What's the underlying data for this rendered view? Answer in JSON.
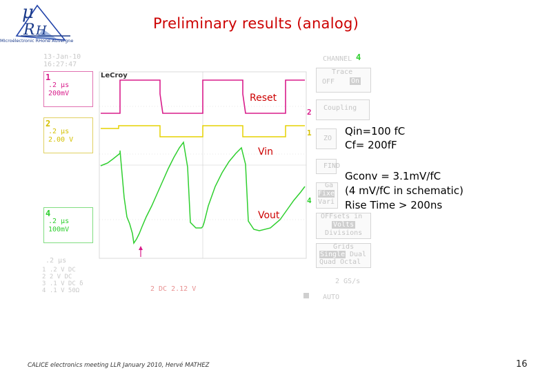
{
  "header": {
    "title": "Preliminary  results (analog)",
    "logo_caption": "MIcroélectronic RHone Auvergne"
  },
  "scope": {
    "date": "13-Jan-10",
    "time": "16:27:47",
    "brand": "LeCroy",
    "channels": [
      {
        "num": "1",
        "line1": ".2 μs",
        "line2": "200mV",
        "color": "#d81b8a"
      },
      {
        "num": "2",
        "line1": ".2 μs",
        "line2": "2.00 V",
        "color": "#e6d200"
      },
      {
        "num": "4",
        "line1": ".2 μs",
        "line2": "100mV",
        "color": "#2ecf2e"
      }
    ],
    "timebase": ".2 μs",
    "summary_rows": [
      "1   .2  V   DC",
      "2  2   V   DC",
      "3  .1  V   DC δ",
      "4  .1  V   50Ω"
    ],
    "trigger_readout": "2 DC 2.12 V",
    "sample_rate": "2 GS/s",
    "trigger_mode": "AUTO",
    "menu": {
      "channel_label": "CHANNEL",
      "channel_num": "4",
      "trace_label": "Trace",
      "trace_off": "OFF",
      "trace_on": "On",
      "coupling_label": "Coupling",
      "zoom_label": "ZO",
      "find_label": "FIND",
      "gain_label": "Ga",
      "gain_opt1": "Fixe",
      "gain_opt2": "Vari",
      "offsets_label": "OFFsets in",
      "offsets_opt1": "Volts",
      "offsets_opt2": "Divisions",
      "grids_label": "Grids",
      "grids_opt1": "Single",
      "grids_opt2": "Dual",
      "grids_opt3": "Quad",
      "grids_opt4": "Octal"
    },
    "trace_labels": {
      "reset": "Reset",
      "vin": "Vin",
      "vout": "Vout"
    },
    "label_color": "#cc0000",
    "right_markers": [
      "2",
      "1",
      "4"
    ]
  },
  "annotations": {
    "qin": "Qin=100 fC",
    "cf": "Cf= 200fF",
    "gconv": "Gconv = 3.1mV/fC",
    "schematic": "(4 mV/fC in schematic)",
    "rise": "Rise Time > 200ns"
  },
  "footer": {
    "text": "CALICE electronics  meeting LLR  January 2010, Hervé MATHEZ",
    "page": "16"
  }
}
